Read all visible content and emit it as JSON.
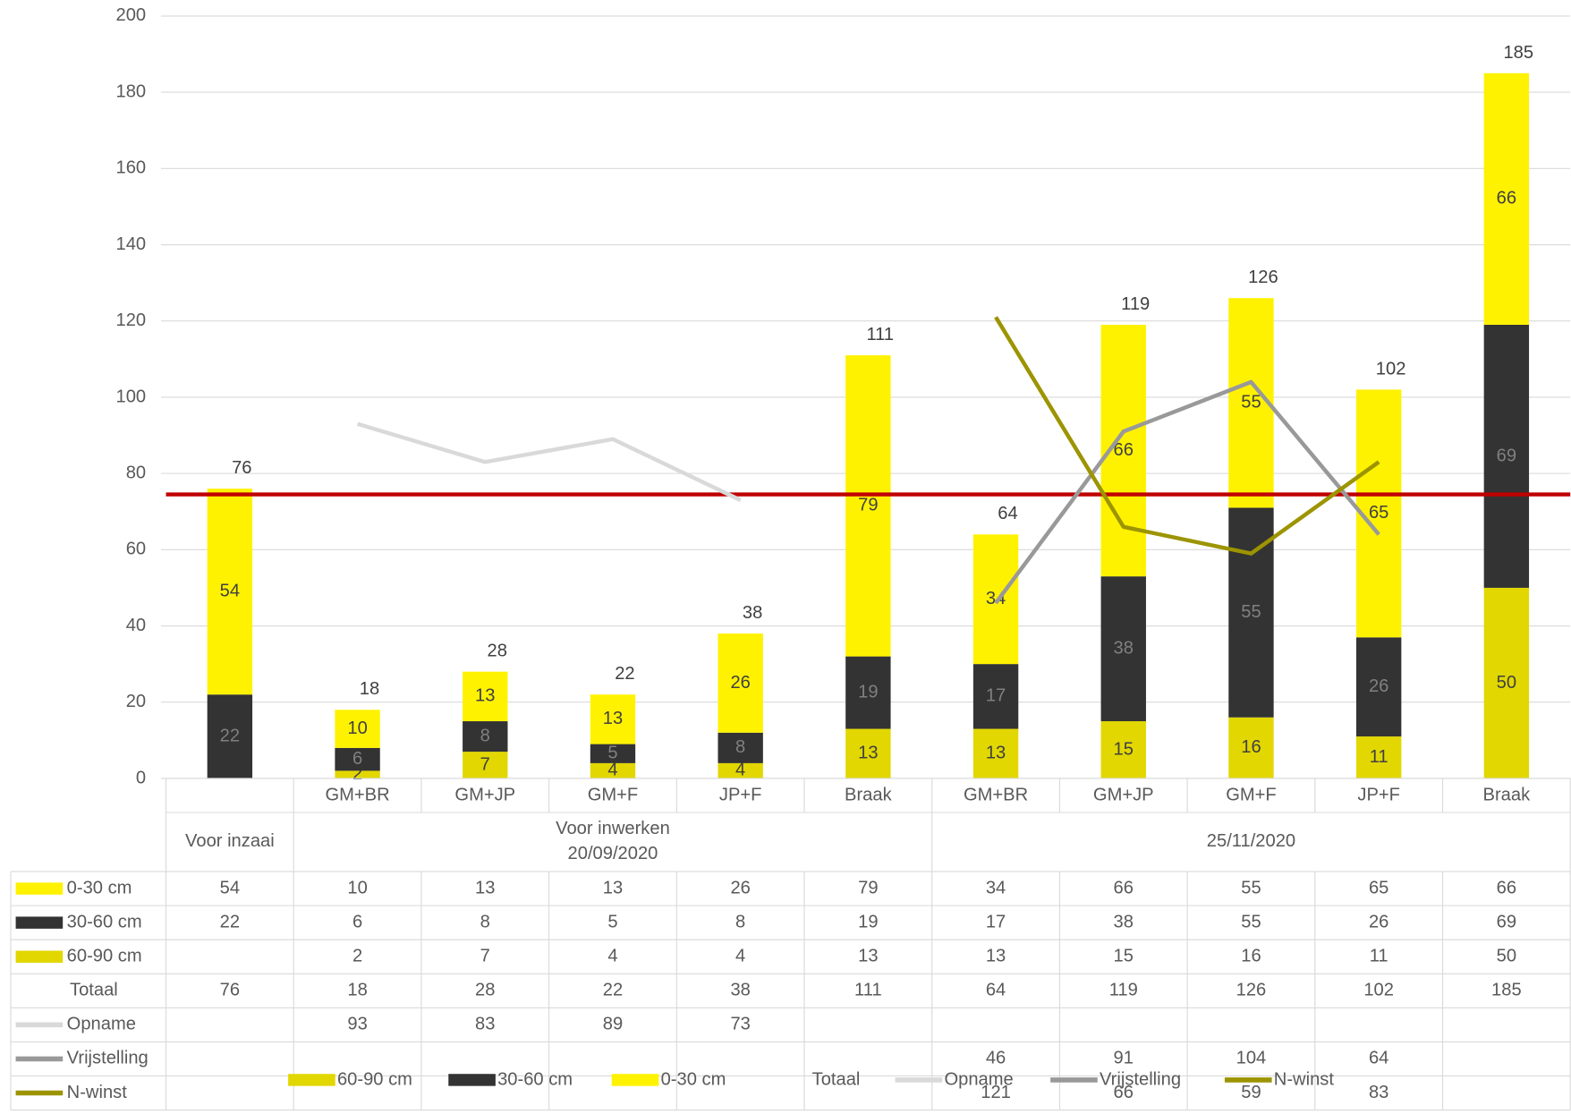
{
  "chart_data": {
    "type": "bar",
    "stacked": true,
    "categories": [
      null,
      "GM+BR",
      "GM+JP",
      "GM+F",
      "JP+F",
      "Braak",
      "GM+BR",
      "GM+JP",
      "GM+F",
      "JP+F",
      "Braak"
    ],
    "groups": [
      {
        "label": [
          "Voor inzaai"
        ],
        "size": 1
      },
      {
        "label": [
          "Voor inwerken",
          "20/09/2020"
        ],
        "size": 5
      },
      {
        "label": [
          "25/11/2020"
        ],
        "size": 5
      }
    ],
    "series": [
      {
        "name": "0-30 cm",
        "type": "bar",
        "color": "#fff200",
        "values": [
          54,
          10,
          13,
          13,
          26,
          79,
          34,
          66,
          55,
          65,
          66
        ]
      },
      {
        "name": "30-60 cm",
        "type": "bar",
        "color": "#333333",
        "values": [
          22,
          6,
          8,
          5,
          8,
          19,
          17,
          38,
          55,
          26,
          69
        ]
      },
      {
        "name": "60-90 cm",
        "type": "bar",
        "color": "#e2d700",
        "values": [
          null,
          2,
          7,
          4,
          4,
          13,
          13,
          15,
          16,
          11,
          50
        ]
      },
      {
        "name": "Totaal",
        "type": "total",
        "values": [
          76,
          18,
          28,
          22,
          38,
          111,
          64,
          119,
          126,
          102,
          185
        ]
      },
      {
        "name": "Opname",
        "type": "line",
        "color": "#d9d9d9",
        "values": [
          null,
          93,
          83,
          89,
          73,
          null,
          null,
          null,
          null,
          null,
          null
        ]
      },
      {
        "name": "Vrijstelling",
        "type": "line",
        "color": "#999999",
        "values": [
          null,
          null,
          null,
          null,
          null,
          null,
          46,
          91,
          104,
          64,
          null
        ]
      },
      {
        "name": "N-winst",
        "type": "line",
        "color": "#9c9400",
        "values": [
          null,
          null,
          null,
          null,
          null,
          null,
          121,
          66,
          59,
          83,
          null
        ]
      }
    ],
    "legend_order": [
      2,
      1,
      0,
      3,
      4,
      5,
      6
    ],
    "reference_line": {
      "value": 74.5,
      "color": "#c00000"
    },
    "ylim": [
      0,
      200
    ],
    "yticks": [
      0,
      20,
      40,
      60,
      80,
      100,
      120,
      140,
      160,
      180,
      200
    ],
    "grid": true
  }
}
